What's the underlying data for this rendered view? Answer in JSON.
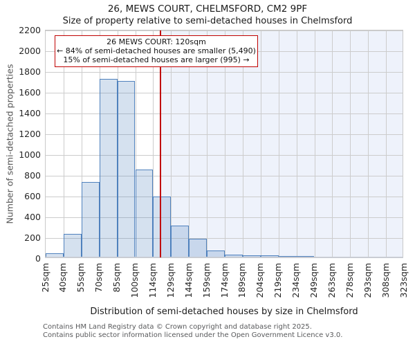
{
  "figure": {
    "title": "26, MEWS COURT, CHELMSFORD, CM2 9PF",
    "subtitle": "Size of property relative to semi-detached houses in Chelmsford"
  },
  "chart_data": {
    "type": "bar",
    "title": "26, MEWS COURT, CHELMSFORD, CM2 9PF",
    "subtitle": "Size of property relative to semi-detached houses in Chelmsford",
    "xlabel": "Distribution of semi-detached houses by size in Chelmsford",
    "ylabel": "Number of semi-detached properties",
    "bin_edges_sqm": [
      25,
      40,
      55,
      70,
      85,
      100,
      114,
      129,
      144,
      159,
      174,
      189,
      204,
      219,
      234,
      249,
      263,
      278,
      293,
      308,
      323
    ],
    "tick_labels": [
      "25sqm",
      "40sqm",
      "55sqm",
      "70sqm",
      "85sqm",
      "100sqm",
      "114sqm",
      "129sqm",
      "144sqm",
      "159sqm",
      "174sqm",
      "189sqm",
      "204sqm",
      "219sqm",
      "234sqm",
      "249sqm",
      "263sqm",
      "278sqm",
      "293sqm",
      "308sqm",
      "323sqm"
    ],
    "values": [
      40,
      225,
      730,
      1720,
      1700,
      850,
      590,
      310,
      180,
      65,
      30,
      20,
      20,
      10,
      8,
      0,
      0,
      0,
      0,
      0
    ],
    "ylim": [
      0,
      2200
    ],
    "ytick_step": 200,
    "grid": true,
    "legend": null,
    "marker": {
      "value_sqm": 120,
      "smaller_pct": "84%",
      "smaller_count": "5,490",
      "larger_pct": "15%",
      "larger_count": "995"
    }
  },
  "annotation": {
    "line1": "26 MEWS COURT: 120sqm",
    "line2": "← 84% of semi-detached houses are smaller (5,490)",
    "line3": "15% of semi-detached houses are larger (995) →"
  },
  "colors": {
    "bar_fill": "rgba(79,129,189,0.24)",
    "bar_edge": "#4f81bd",
    "marker_line": "#c00000",
    "annotation_border": "#c00000",
    "shade": "#eef2fb",
    "grid": "#cccccc",
    "spine": "#c9ccd3"
  },
  "footer": {
    "line1": "Contains HM Land Registry data © Crown copyright and database right 2025.",
    "line2": "Contains public sector information licensed under the Open Government Licence v3.0."
  }
}
